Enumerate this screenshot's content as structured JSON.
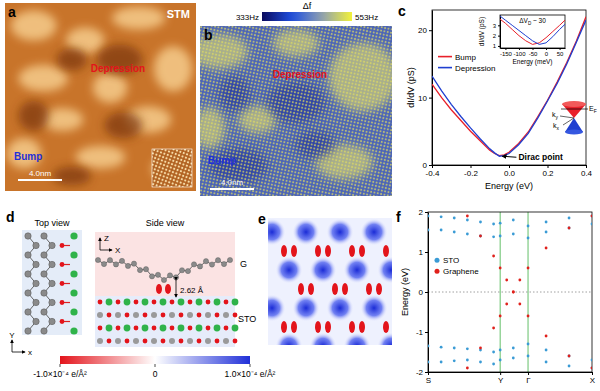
{
  "figure": {
    "a": {
      "label": "a",
      "title": "STM",
      "annotations": [
        "Depression",
        "Bump"
      ],
      "scale_bar": "4.0nm"
    },
    "b": {
      "label": "b",
      "annotations": [
        "Depression",
        "Bump"
      ],
      "scale_bar": "4.0nm",
      "colorbar": {
        "title": "Δf",
        "range": [
          333,
          553
        ],
        "ticks": [
          {
            "value": 333,
            "label": "333Hz"
          },
          {
            "value": 553,
            "label": "553Hz"
          }
        ]
      }
    },
    "d": {
      "label": "d",
      "views": [
        "Top view",
        "Side view"
      ],
      "layers": [
        "G",
        "STO"
      ],
      "distance": "2.62 Å",
      "top_axes": [
        "Y",
        "x"
      ],
      "side_axes": [
        "Z",
        "X"
      ]
    },
    "e": {
      "label": "e"
    },
    "colorbar": {
      "range": [
        -0.0001,
        0.0001
      ],
      "ticks": [
        {
          "value": -0.0001,
          "label": "-1.0×10⁻⁴ e/Å²"
        },
        0,
        {
          "value": 0.0001,
          "label": "1.0×10⁻⁴ e/Å²"
        }
      ]
    }
  },
  "chart_data": [
    {
      "type": "line",
      "panel": "c",
      "xlabel": "Energy (eV)",
      "ylabel": "dI/dV (pS)",
      "x": [
        -0.4,
        -0.35,
        -0.3,
        -0.25,
        -0.2,
        -0.15,
        -0.1,
        -0.075,
        -0.05,
        -0.025,
        0,
        0.05,
        0.1,
        0.15,
        0.2,
        0.25,
        0.3,
        0.35,
        0.4
      ],
      "series": [
        {
          "name": "Bump",
          "color": "#e8202a",
          "values": [
            12.0,
            10.0,
            8.2,
            6.6,
            5.0,
            3.6,
            2.2,
            1.7,
            1.4,
            1.5,
            1.9,
            3.2,
            4.9,
            7.2,
            9.6,
            12.3,
            15.2,
            18.4,
            22.0
          ]
        },
        {
          "name": "Depression",
          "color": "#1f3fd0",
          "values": [
            13.2,
            11.0,
            9.0,
            7.2,
            5.5,
            3.9,
            2.4,
            1.8,
            1.3,
            1.4,
            1.7,
            3.0,
            4.7,
            7.0,
            9.5,
            12.1,
            15.0,
            18.2,
            21.5
          ]
        }
      ],
      "xlim": [
        -0.4,
        0.4
      ],
      "ylim": [
        0,
        23
      ],
      "xticks": [
        -0.4,
        -0.2,
        {
          "value": 0,
          "label": "0.0"
        },
        0.2,
        0.4
      ],
      "yticks": [
        0,
        10,
        20
      ],
      "legend": "left",
      "annotations": [
        {
          "text": "Dirac point",
          "x": -0.05,
          "y": 1.3
        }
      ],
      "cone_labels": [
        {
          "text": "E",
          "sub": "F"
        },
        {
          "text": "k",
          "sub": "x"
        },
        {
          "text": "k",
          "sub": "y"
        }
      ]
    },
    {
      "type": "line",
      "xlabel": "Energy (meV)",
      "ylabel": "dI/dV (pS)",
      "x": [
        -170,
        -150,
        -125,
        -100,
        -75,
        -50,
        -25,
        0,
        25,
        50,
        70
      ],
      "series": [
        {
          "name": "Bump",
          "color": "#e8202a",
          "values": [
            3.6,
            3.2,
            2.6,
            2.0,
            1.5,
            1.15,
            1.3,
            1.8,
            2.4,
            3.0,
            3.5
          ]
        },
        {
          "name": "Depression",
          "color": "#1f3fd0",
          "values": [
            3.9,
            3.5,
            3.0,
            2.5,
            2.0,
            1.5,
            1.15,
            1.3,
            1.9,
            2.6,
            3.1
          ]
        }
      ],
      "xlim": [
        -170,
        70
      ],
      "ylim": [
        0.8,
        4.0
      ],
      "xticks": [
        -150,
        -100,
        -50,
        0,
        50
      ],
      "yticks": [
        1,
        2,
        3
      ],
      "annotations": [
        {
          "text": "ΔV",
          "sub": "D",
          "rest": " ~ 30"
        }
      ]
    },
    {
      "type": "scatter",
      "panel": "f",
      "ylabel": "Energy (eV)",
      "series": [
        {
          "name": "STO",
          "color": "#3a9bd5",
          "x": [
            0,
            0.08,
            0.16,
            0.24,
            0.32,
            0.4,
            0.44,
            0.52,
            0.61,
            0.72,
            0.86,
            1.0,
            0,
            0.08,
            0.16,
            0.24,
            0.32,
            0.4,
            0.44,
            0.52,
            0.61,
            0.72,
            0.86,
            1.0,
            0,
            0.08,
            0.16,
            0.24,
            0.32,
            0.4,
            0.44,
            0.52,
            0.61,
            0.72,
            0.86,
            1.0,
            0,
            0.08,
            0.16,
            0.24,
            0.32,
            0.4,
            0.44,
            0.52,
            0.61,
            0.72,
            0.86,
            1.0
          ],
          "values": [
            1.55,
            1.55,
            1.5,
            1.45,
            1.4,
            1.38,
            1.4,
            1.45,
            1.35,
            1.5,
            1.6,
            1.7,
            1.9,
            1.88,
            1.85,
            1.8,
            1.75,
            1.7,
            1.72,
            1.8,
            1.65,
            1.75,
            1.85,
            1.9,
            -1.35,
            -1.38,
            -1.4,
            -1.42,
            -1.45,
            -1.5,
            -1.45,
            -1.4,
            -1.3,
            -1.45,
            -1.6,
            -1.7,
            -1.75,
            -1.75,
            -1.72,
            -1.7,
            -1.75,
            -1.8,
            -1.7,
            -1.65,
            -1.6,
            -1.75,
            -1.85,
            -1.9
          ]
        },
        {
          "name": "Graphene",
          "color": "#e0201b",
          "x": [
            0.24,
            0.32,
            0.4,
            0.44,
            0.48,
            0.52,
            0.56,
            0.61,
            0.72,
            0.86,
            1.0,
            0.24,
            0.32,
            0.4,
            0.44,
            0.48,
            0.52,
            0.56,
            0.61,
            0.72,
            0.86,
            1.0
          ],
          "values": [
            1.9,
            1.4,
            0.9,
            0.6,
            0.3,
            0.0,
            0.3,
            0.6,
            1.1,
            1.6,
            1.9,
            -1.9,
            -1.4,
            -0.9,
            -0.6,
            -0.3,
            0.0,
            -0.3,
            -0.6,
            -1.1,
            -1.6,
            -1.9
          ]
        }
      ],
      "xlim": [
        0,
        1
      ],
      "ylim": [
        -2,
        2
      ],
      "xticks": [
        {
          "value": 0,
          "label": "S"
        },
        {
          "value": 0.44,
          "label": "Y"
        },
        {
          "value": 0.61,
          "label": "Γ"
        },
        {
          "value": 1,
          "label": "X"
        }
      ],
      "yticks": [
        -2,
        -1,
        0,
        1,
        2
      ],
      "legend": "left"
    }
  ]
}
